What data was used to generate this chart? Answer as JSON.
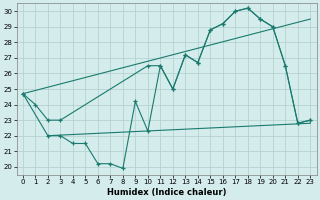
{
  "xlabel": "Humidex (Indice chaleur)",
  "bg_color": "#d4eceb",
  "line_color": "#1a7a6e",
  "grid_color": "#b0cfce",
  "xlim": [
    -0.5,
    23.5
  ],
  "ylim": [
    19.5,
    30.5
  ],
  "xticks": [
    0,
    1,
    2,
    3,
    4,
    5,
    6,
    7,
    8,
    9,
    10,
    11,
    12,
    13,
    14,
    15,
    16,
    17,
    18,
    19,
    20,
    21,
    22,
    23
  ],
  "yticks": [
    20,
    21,
    22,
    23,
    24,
    25,
    26,
    27,
    28,
    29,
    30
  ],
  "series_upper_x": [
    0,
    1,
    2,
    3,
    10,
    11,
    12,
    13,
    14,
    15,
    16,
    17,
    18,
    19,
    20,
    21,
    22,
    23
  ],
  "series_upper_y": [
    24.7,
    24.0,
    23.0,
    23.0,
    26.5,
    26.5,
    25.0,
    27.2,
    26.7,
    28.8,
    29.2,
    30.0,
    30.2,
    29.5,
    29.0,
    26.5,
    22.8,
    23.0
  ],
  "series_lower_x": [
    0,
    2,
    3,
    4,
    5,
    6,
    7,
    8,
    9,
    10,
    11,
    12,
    13,
    14,
    15,
    16,
    17,
    18,
    19,
    20,
    21,
    22,
    23
  ],
  "series_lower_y": [
    24.7,
    22.0,
    22.0,
    21.5,
    21.5,
    20.2,
    20.2,
    19.9,
    24.2,
    22.3,
    26.5,
    25.0,
    27.2,
    26.7,
    28.8,
    29.2,
    30.0,
    30.2,
    29.5,
    29.0,
    26.5,
    22.8,
    23.0
  ],
  "trend1_x": [
    0,
    23
  ],
  "trend1_y": [
    24.7,
    29.5
  ],
  "trend2_x": [
    2,
    23
  ],
  "trend2_y": [
    22.0,
    22.8
  ]
}
